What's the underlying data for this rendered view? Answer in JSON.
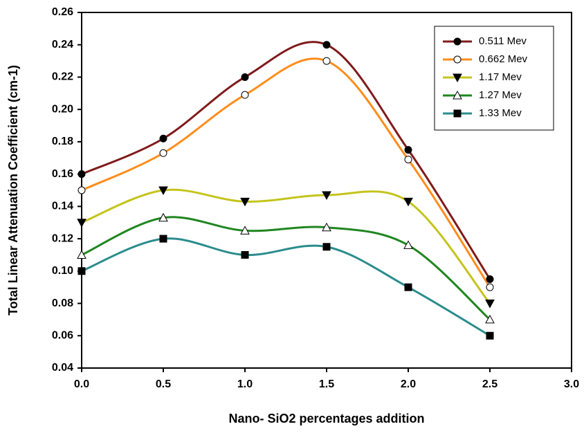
{
  "chart_data": {
    "type": "line",
    "xlabel": "Nano- SiO2 percentages addition",
    "ylabel": "Total Linear Attenuation Coefficient (cm-1)",
    "x": [
      0,
      0.5,
      1,
      1.5,
      2,
      2.5
    ],
    "series": [
      {
        "name": "0.511 Mev",
        "color": "#7f1a1a",
        "marker": "circle",
        "marker_fill": "#000000",
        "values": [
          0.16,
          0.182,
          0.22,
          0.24,
          0.175,
          0.095
        ]
      },
      {
        "name": "0.662 Mev",
        "color": "#ff8c1a",
        "marker": "circle",
        "marker_fill": "#ffffff",
        "values": [
          0.15,
          0.173,
          0.209,
          0.23,
          0.169,
          0.09
        ]
      },
      {
        "name": "1.17 Mev",
        "color": "#c4c41c",
        "marker": "triangle-down",
        "marker_fill": "#000000",
        "values": [
          0.13,
          0.15,
          0.143,
          0.147,
          0.143,
          0.08
        ]
      },
      {
        "name": "1.27 Mev",
        "color": "#1f861f",
        "marker": "triangle-up",
        "marker_fill": "#ffffff",
        "values": [
          0.11,
          0.133,
          0.125,
          0.127,
          0.116,
          0.07
        ]
      },
      {
        "name": "1.33 Mev",
        "color": "#2a8c8c",
        "marker": "square",
        "marker_fill": "#000000",
        "values": [
          0.1,
          0.12,
          0.11,
          0.115,
          0.09,
          0.06
        ]
      }
    ],
    "xlim": [
      0,
      3
    ],
    "xticks": [
      {
        "value": 0,
        "label": "0.0"
      },
      {
        "value": 0.5,
        "label": "0.5"
      },
      {
        "value": 1,
        "label": "1.0"
      },
      {
        "value": 1.5,
        "label": "1.5"
      },
      {
        "value": 2,
        "label": "2.0"
      },
      {
        "value": 2.5,
        "label": "2.5"
      },
      {
        "value": 3,
        "label": "3.0"
      }
    ],
    "ylim": [
      0.04,
      0.26
    ],
    "yticks": [
      0.04,
      0.06,
      0.08,
      {
        "value": 0.1,
        "label": "0.10"
      },
      0.12,
      0.14,
      0.16,
      0.18,
      {
        "value": 0.2,
        "label": "0.20"
      },
      0.22,
      0.24,
      0.26
    ],
    "smooth": true,
    "legend": "upper right"
  }
}
